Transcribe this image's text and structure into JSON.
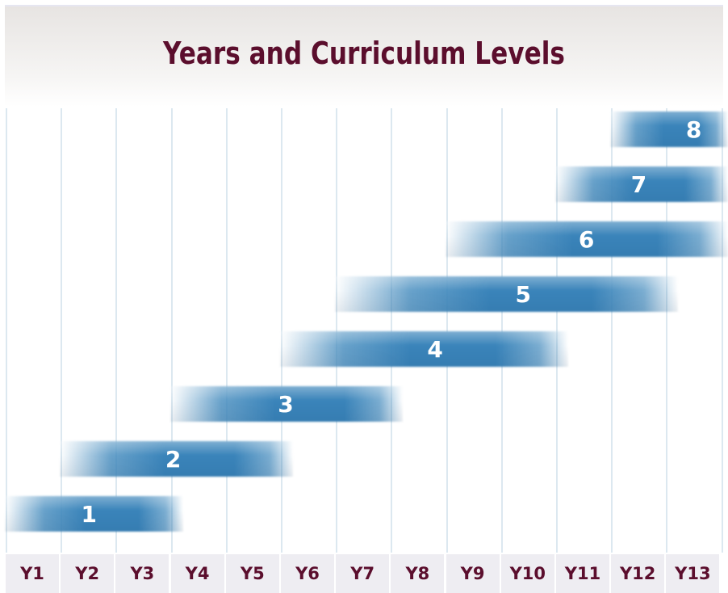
{
  "title": "Years and Curriculum Levels",
  "years": [
    "Y1",
    "Y2",
    "Y3",
    "Y4",
    "Y5",
    "Y6",
    "Y7",
    "Y8",
    "Y9",
    "Y10",
    "Y11",
    "Y12",
    "Y13"
  ],
  "levels": [
    {
      "label": "1",
      "start_year": "Y1",
      "end_year": "Y3"
    },
    {
      "label": "2",
      "start_year": "Y2",
      "end_year": "Y5"
    },
    {
      "label": "3",
      "start_year": "Y4",
      "end_year": "Y7"
    },
    {
      "label": "4",
      "start_year": "Y6",
      "end_year": "Y10"
    },
    {
      "label": "5",
      "start_year": "Y7",
      "end_year": "Y12"
    },
    {
      "label": "6",
      "start_year": "Y9",
      "end_year": "Y13"
    },
    {
      "label": "7",
      "start_year": "Y11",
      "end_year": "Y13"
    },
    {
      "label": "8",
      "start_year": "Y12",
      "end_year": "Y13"
    }
  ],
  "colors": {
    "title": "#5b0e2d",
    "bar": "#3a84ba",
    "gridline": "#dce8f0",
    "year_band": "#eeedf2"
  }
}
